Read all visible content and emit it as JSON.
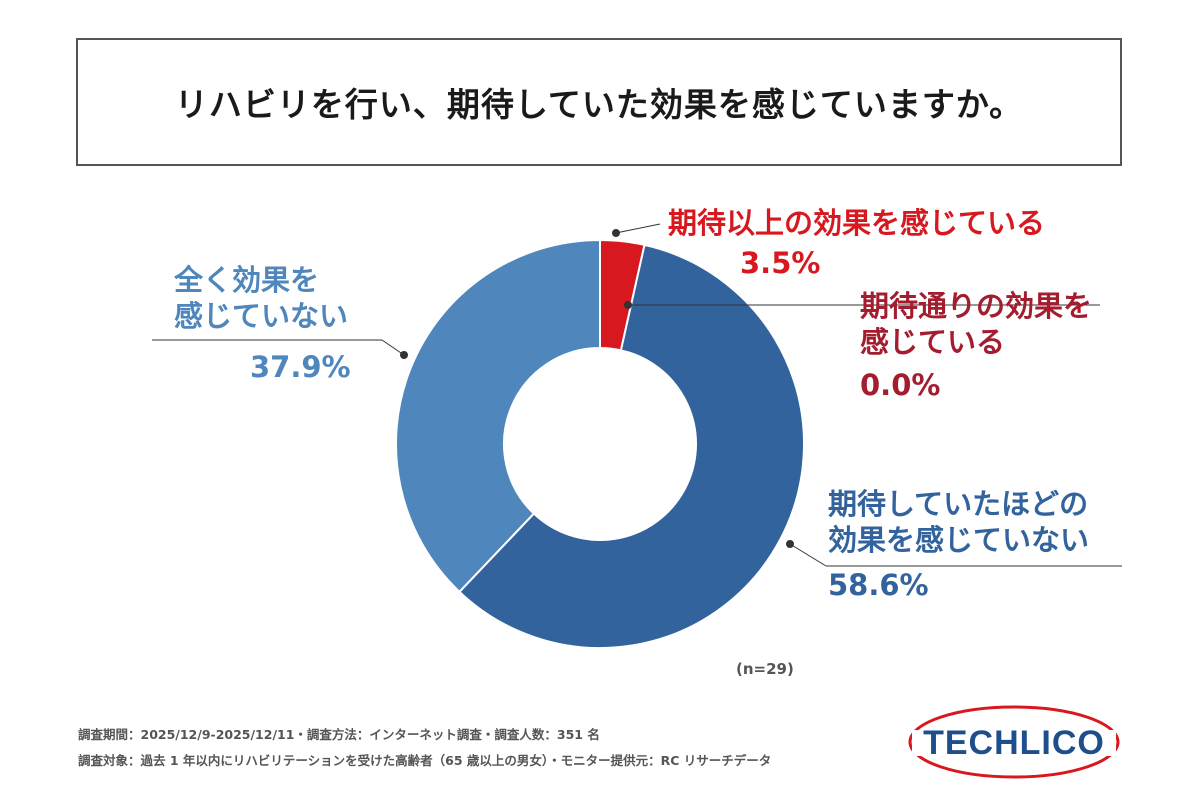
{
  "title": "リハビリを行い、期待していた効果を感じていますか。",
  "chart_data": {
    "type": "pie",
    "donut": true,
    "title": "リハビリを行い、期待していた効果を感じていますか。",
    "sample_label": "(n=29)",
    "categories": [
      "期待以上の効果を感じている",
      "期待通りの効果を感じている",
      "期待していたほどの効果を感じていない",
      "全く効果を感じていない"
    ],
    "values": [
      3.5,
      0.0,
      58.6,
      37.9
    ],
    "value_labels": [
      "3.5%",
      "0.0%",
      "58.6%",
      "37.9%"
    ],
    "colors": [
      "#d7191f",
      "#a31d2f",
      "#33639d",
      "#4f87bd"
    ]
  },
  "labels": {
    "exceeded": {
      "text": "期待以上の効果を感じている",
      "pct": "3.5%",
      "color": "#d7191f"
    },
    "as_expected": {
      "line1": "期待通りの効果を",
      "line2": "感じている",
      "pct": "0.0%",
      "color": "#a31d2f"
    },
    "below": {
      "line1": "期待していたほどの",
      "line2": "効果を感じていない",
      "pct": "58.6%",
      "color": "#33639d"
    },
    "none": {
      "line1": "全く効果を",
      "line2": "感じていない",
      "pct": "37.9%",
      "color": "#4f87bd"
    }
  },
  "footer": {
    "line1": "調査期間：2025/12/9-2025/12/11・調査方法：インターネット調査・調査人数：351 名",
    "line2": "調査対象：過去 1 年以内にリハビリテーションを受けた高齢者（65 歳以上の男女）・モニター提供元：RC リサーチデータ"
  },
  "logo": {
    "text": "TECHLICO",
    "color": "#1f4e8c",
    "ring_color": "#d7191f"
  }
}
